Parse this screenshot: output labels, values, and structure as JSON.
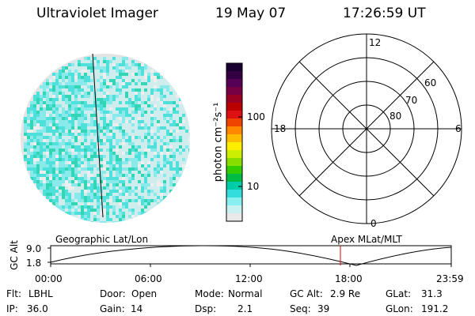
{
  "header": {
    "instrument": "Ultraviolet Imager",
    "date": "19 May 07",
    "time": "17:26:59 UT"
  },
  "colorbar": {
    "label": "photon cm⁻²s⁻¹",
    "ticks": [
      "100",
      "10"
    ],
    "colors": [
      "#1a0030",
      "#330044",
      "#550055",
      "#770044",
      "#990022",
      "#bb0000",
      "#dd1111",
      "#ee4400",
      "#ff8800",
      "#ffbb00",
      "#ffee00",
      "#ccee00",
      "#88dd00",
      "#33cc00",
      "#00bb44",
      "#00ccaa",
      "#33dddd",
      "#88eeee",
      "#c8f0f0",
      "#e8e8e8"
    ]
  },
  "polar_plot": {
    "mlt_labels": [
      "12",
      "18",
      "6",
      "0"
    ],
    "lat_labels": [
      "60",
      "70",
      "80"
    ]
  },
  "timeline": {
    "left_label": "Geographic Lat/Lon",
    "right_label": "Apex MLat/MLT",
    "axis_label": "GC Alt",
    "y_ticks": [
      "9.0",
      "1.8"
    ],
    "x_ticks": [
      "00:00",
      "06:00",
      "12:00",
      "18:00",
      "23:59"
    ],
    "marker_color": "#dd0000"
  },
  "info": {
    "flt_label": "Flt:",
    "flt_value": "LBHL",
    "door_label": "Door:",
    "door_value": "Open",
    "mode_label": "Mode:",
    "mode_value": "Normal",
    "gcalt_label": "GC Alt:",
    "gcalt_value": "2.9 Re",
    "glat_label": "GLat:",
    "glat_value": "31.3",
    "ip_label": "IP:",
    "ip_value": "36.0",
    "gain_label": "Gain:",
    "gain_value": "14",
    "dsp_label": "Dsp:",
    "dsp_value": "2.1",
    "seq_label": "Seq:",
    "seq_value": "39",
    "glon_label": "GLon:",
    "glon_value": "191.2"
  }
}
